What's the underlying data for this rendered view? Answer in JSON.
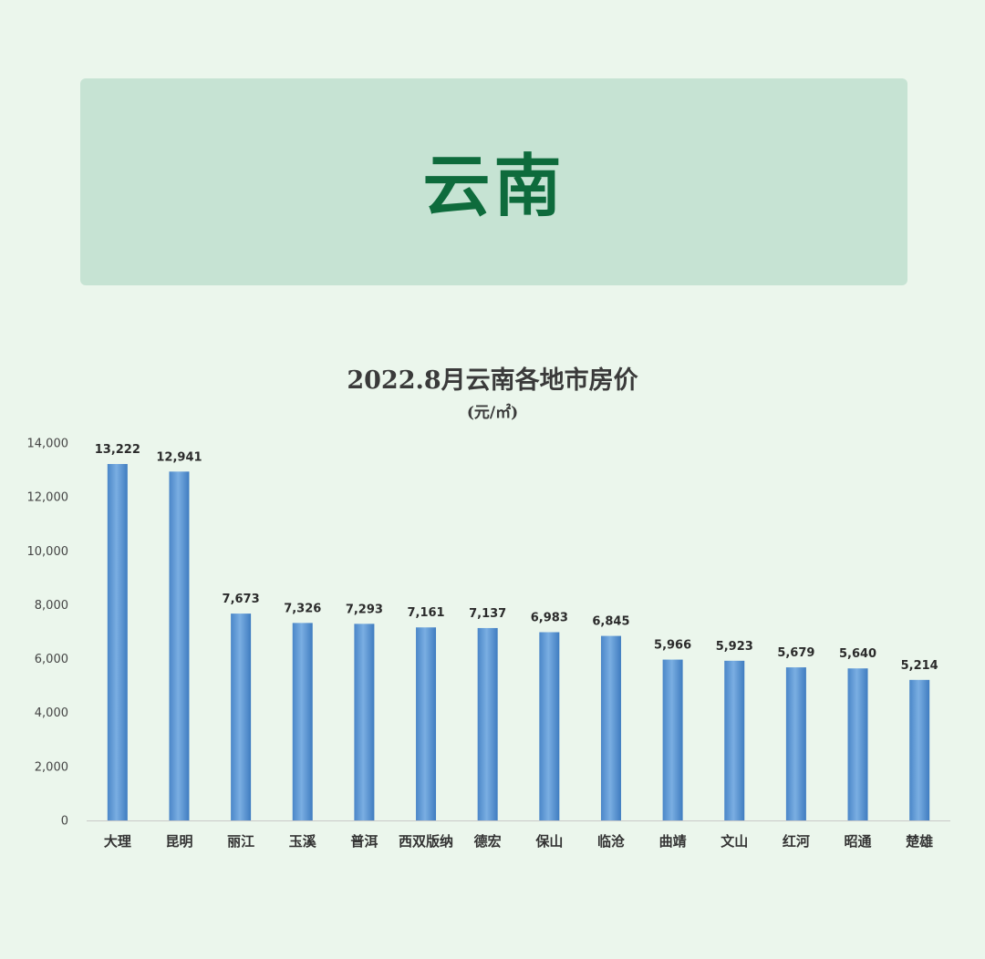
{
  "banner": {
    "title": "云南"
  },
  "chart_data": {
    "type": "bar",
    "title": "2022.8月云南各地市房价",
    "subtitle": "(元/㎡)",
    "xlabel": "",
    "ylabel": "",
    "ylim": [
      0,
      14000
    ],
    "yticks": [
      0,
      2000,
      4000,
      6000,
      8000,
      10000,
      12000,
      14000
    ],
    "ytick_labels": [
      "0",
      "2,000",
      "4,000",
      "6,000",
      "8,000",
      "10,000",
      "12,000",
      "14,000"
    ],
    "categories": [
      "大理",
      "昆明",
      "丽江",
      "玉溪",
      "普洱",
      "西双版纳",
      "德宏",
      "保山",
      "临沧",
      "曲靖",
      "文山",
      "红河",
      "昭通",
      "楚雄"
    ],
    "values": [
      13222,
      12941,
      7673,
      7326,
      7293,
      7161,
      7137,
      6983,
      6845,
      5966,
      5923,
      5679,
      5640,
      5214
    ],
    "value_labels": [
      "13,222",
      "12,941",
      "7,673",
      "7,326",
      "7,293",
      "7,161",
      "7,137",
      "6,983",
      "6,845",
      "5,966",
      "5,923",
      "5,679",
      "5,640",
      "5,214"
    ],
    "grid": false,
    "bar_color": "#5b9bd5"
  }
}
